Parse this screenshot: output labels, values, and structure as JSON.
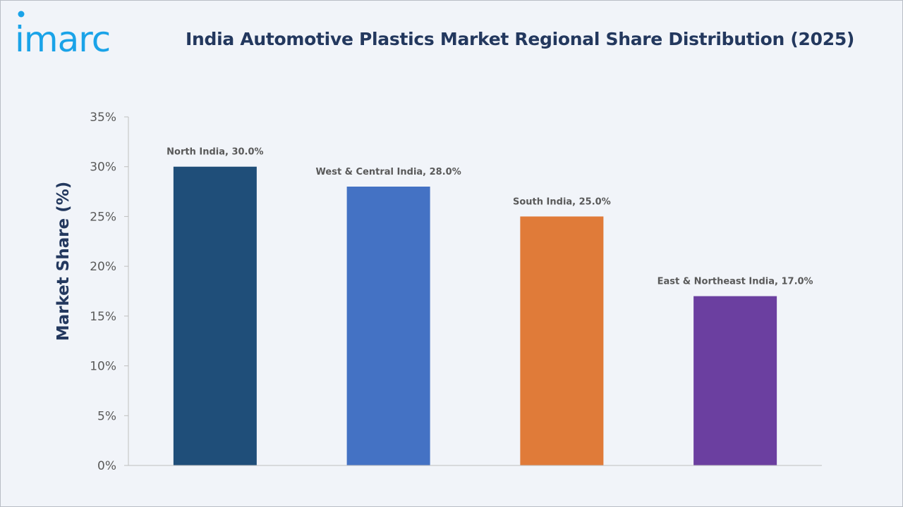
{
  "brand": {
    "logo_text": "imarc",
    "logo_color": "#1aa3e8"
  },
  "chart_data": {
    "type": "bar",
    "title": "India Automotive Plastics Market Regional Share Distribution (2025)",
    "xlabel": "",
    "ylabel": "Market Share (%)",
    "ylim": [
      0,
      35
    ],
    "yticks": [
      "0%",
      "5%",
      "10%",
      "15%",
      "20%",
      "25%",
      "30%",
      "35%"
    ],
    "ytick_values": [
      0,
      5,
      10,
      15,
      20,
      25,
      30,
      35
    ],
    "grid": false,
    "categories": [
      "North India",
      "West & Central India",
      "South India",
      "East & Northeast India"
    ],
    "values": [
      30.0,
      28.0,
      25.0,
      17.0
    ],
    "data_labels": [
      "North India, 30.0%",
      "West & Central India, 28.0%",
      "South India, 25.0%",
      "East & Northeast India, 17.0%"
    ],
    "colors": [
      "#1f4e79",
      "#4472c4",
      "#e07b39",
      "#6b3fa0"
    ]
  }
}
